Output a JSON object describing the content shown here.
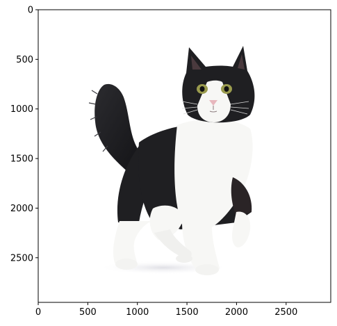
{
  "chart_data": {
    "type": "image",
    "image_subject": "black-and-white tuxedo cat standing with one front paw raised",
    "colors": {
      "background": "#ffffff",
      "fur_dark": "#1f1f22",
      "fur_light": "#f7f7f5",
      "eyes": "#9a9b4e",
      "nose": "#e7b7bd"
    },
    "title": "",
    "xlabel": "",
    "ylabel": "",
    "xlim": [
      0,
      2950
    ],
    "ylim": [
      2950,
      0
    ],
    "x_ticks": [
      {
        "value": 0,
        "label": "0"
      },
      {
        "value": 500,
        "label": "500"
      },
      {
        "value": 1000,
        "label": "1000"
      },
      {
        "value": 1500,
        "label": "1500"
      },
      {
        "value": 2000,
        "label": "2000"
      },
      {
        "value": 2500,
        "label": "2500"
      }
    ],
    "y_ticks": [
      {
        "value": 0,
        "label": "0"
      },
      {
        "value": 500,
        "label": "500"
      },
      {
        "value": 1000,
        "label": "1000"
      },
      {
        "value": 1500,
        "label": "1500"
      },
      {
        "value": 2000,
        "label": "2000"
      },
      {
        "value": 2500,
        "label": "2500"
      }
    ],
    "grid": false,
    "legend": "none"
  }
}
